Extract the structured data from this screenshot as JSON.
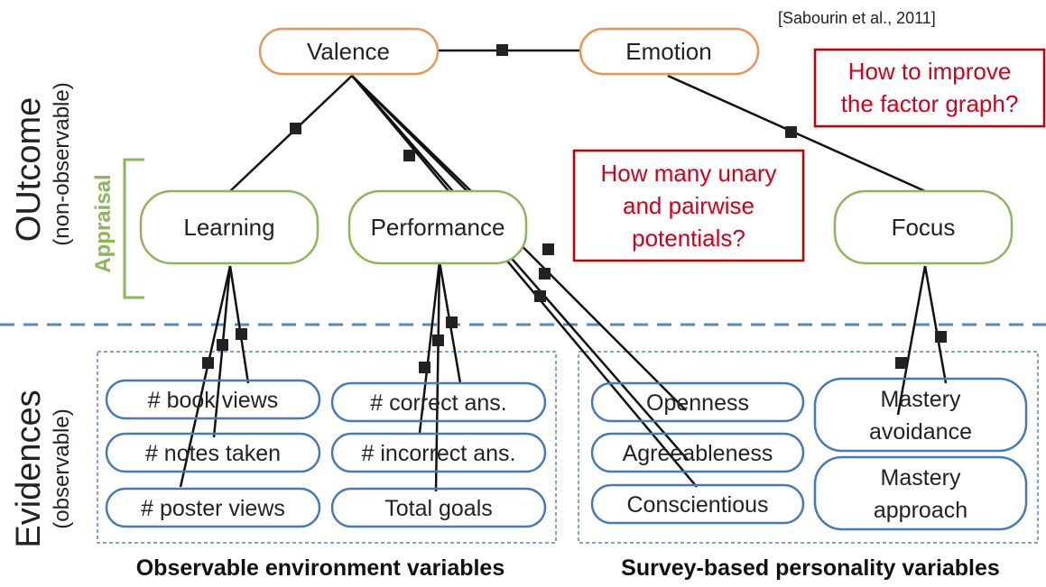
{
  "citation": "[Sabourin et al., 2011]",
  "side_labels": {
    "outcome": "OUtcome",
    "outcome_sub": "(non-observable)",
    "appraisal": "Appraisal",
    "evidences": "Evidences",
    "evidences_sub": "(observable)"
  },
  "nodes": {
    "valence": "Valence",
    "emotion": "Emotion",
    "learning": "Learning",
    "performance": "Performance",
    "focus": "Focus"
  },
  "questions": {
    "potentials_1": "How many unary",
    "potentials_2": "and pairwise",
    "potentials_3": "potentials?",
    "improve_1": "How to improve",
    "improve_2": "the factor graph?"
  },
  "evidence": {
    "book_views": "# book views",
    "notes_taken": "# notes taken",
    "poster_views": "# poster views",
    "correct_ans": "# correct ans.",
    "incorrect_ans": "# incorrect ans.",
    "total_goals": "Total goals",
    "openness": "Openness",
    "agreeableness": "Agreeableness",
    "conscientious": "Conscientious",
    "mastery_avoidance_1": "Mastery",
    "mastery_avoidance_2": "avoidance",
    "mastery_approach_1": "Mastery",
    "mastery_approach_2": "approach"
  },
  "footers": {
    "env": "Observable environment variables",
    "survey": "Survey-based personality variables"
  },
  "colors": {
    "outcome_node_border": "#e8955a",
    "appraisal_node_border": "#8db65a",
    "evidence_node_border": "#4a78b5",
    "question_border": "#c00000",
    "question_text": "#d0021b",
    "divider": "#5b87b9"
  }
}
